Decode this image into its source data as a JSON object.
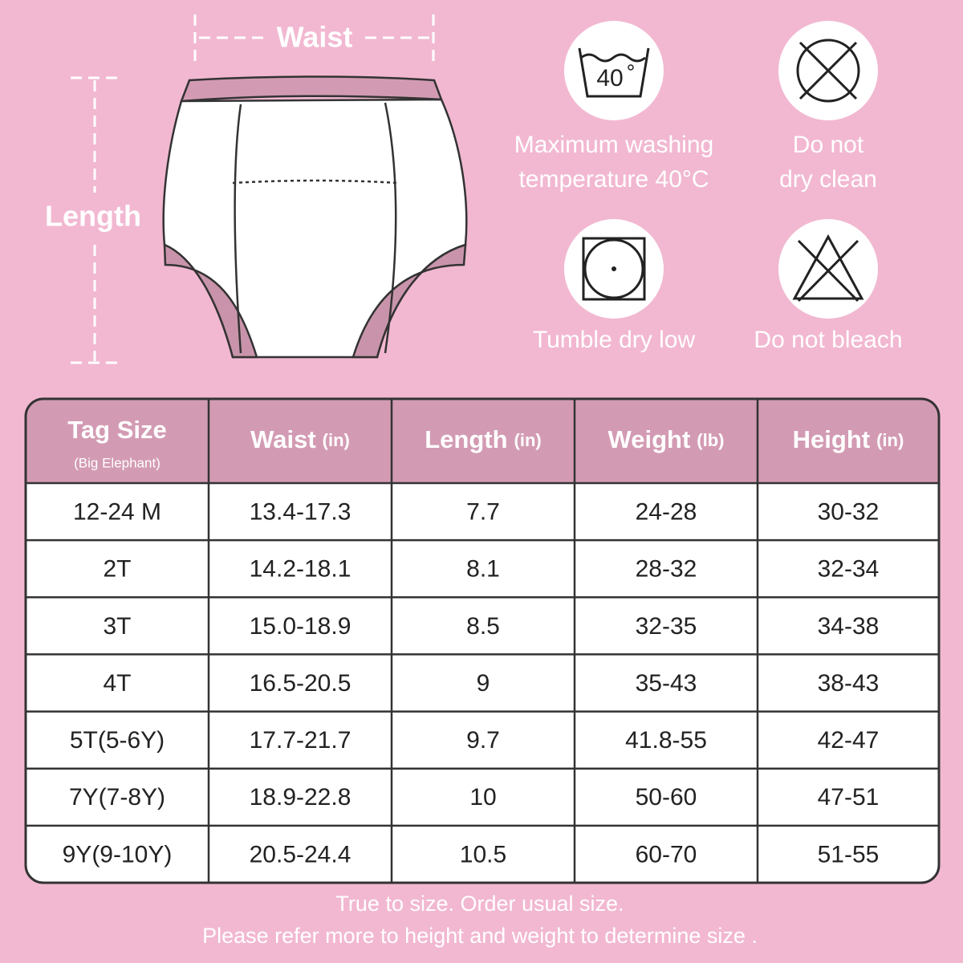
{
  "diagram": {
    "waist_label": "Waist",
    "length_label": "Length"
  },
  "care": [
    {
      "icon_label": "40",
      "lines": [
        "Maximum washing",
        "temperature 40°C"
      ]
    },
    {
      "lines": [
        "Do not",
        "dry clean"
      ]
    },
    {
      "lines": [
        "Tumble dry low"
      ]
    },
    {
      "lines": [
        "Do not bleach"
      ]
    }
  ],
  "table": {
    "header": [
      {
        "name": "Tag Size",
        "note": "(Big Elephant)"
      },
      {
        "name": "Waist",
        "unit": "(in)"
      },
      {
        "name": "Length",
        "unit": "(in)"
      },
      {
        "name": "Weight",
        "unit": "(lb)"
      },
      {
        "name": "Height",
        "unit": "(in)"
      }
    ],
    "rows": [
      [
        "12-24 M",
        "13.4-17.3",
        "7.7",
        "24-28",
        "30-32"
      ],
      [
        "2T",
        "14.2-18.1",
        "8.1",
        "28-32",
        "32-34"
      ],
      [
        "3T",
        "15.0-18.9",
        "8.5",
        "32-35",
        "34-38"
      ],
      [
        "4T",
        "16.5-20.5",
        "9",
        "35-43",
        "38-43"
      ],
      [
        "5T(5-6Y)",
        "17.7-21.7",
        "9.7",
        "41.8-55",
        "42-47"
      ],
      [
        "7Y(7-8Y)",
        "18.9-22.8",
        "10",
        "50-60",
        "47-51"
      ],
      [
        "9Y(9-10Y)",
        "20.5-24.4",
        "10.5",
        "60-70",
        "51-55"
      ]
    ]
  },
  "footer": [
    "True to size. Order usual size.",
    "Please refer more to height and weight to determine size ."
  ]
}
